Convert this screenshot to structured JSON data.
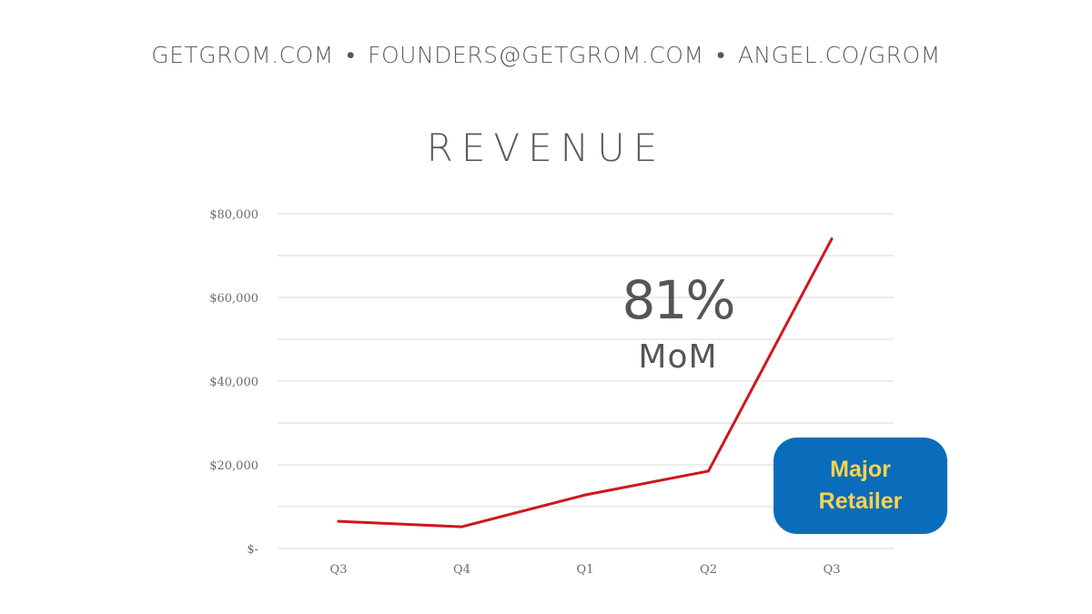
{
  "header": {
    "items": [
      "GETGROM.COM",
      "FOUNDERS@GETGROM.COM",
      "ANGEL.CO/GROM"
    ],
    "separator": "•"
  },
  "callout": {
    "value": "81%",
    "label": "MoM"
  },
  "badge": {
    "text": "Major\nRetailer",
    "background": "#0a6dbb",
    "text_color": "#ffd34d"
  },
  "colors": {
    "line": "#d0161e",
    "grid": "#d9d9d9",
    "text": "#5a5a5a"
  },
  "chart_data": {
    "type": "line",
    "title": "REVENUE",
    "xlabel": "",
    "ylabel": "",
    "categories": [
      "Q3",
      "Q4",
      "Q1",
      "Q2",
      "Q3"
    ],
    "series": [
      {
        "values": [
          6500,
          5200,
          12800,
          18500,
          74000
        ]
      }
    ],
    "ylim": [
      0,
      80000
    ],
    "y_ticks": [
      {
        "value": 0,
        "label": "$-"
      },
      {
        "value": 20000,
        "label": "$20,000"
      },
      {
        "value": 40000,
        "label": "$40,000"
      },
      {
        "value": 60000,
        "label": "$60,000"
      },
      {
        "value": 80000,
        "label": "$80,000"
      }
    ],
    "minor_gridlines": [
      10000,
      30000,
      50000,
      70000
    ],
    "grid": true,
    "legend": "none"
  }
}
